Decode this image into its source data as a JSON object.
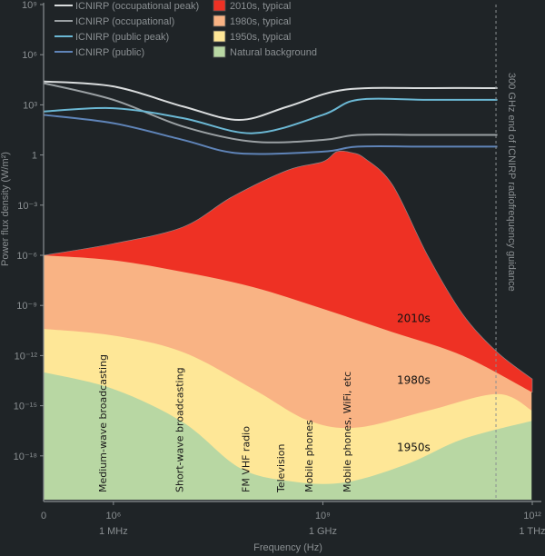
{
  "chart_data": {
    "type": "area",
    "title": "",
    "xlabel": "Frequency (Hz)",
    "ylabel": "Power flux density (W/m²)",
    "x_scale": "log",
    "y_scale": "log",
    "xlim_log10": [
      5,
      12
    ],
    "ylim_log10": [
      -21,
      9
    ],
    "x_ticks": [
      {
        "log10": 5,
        "label": "0",
        "sublabel": ""
      },
      {
        "log10": 6,
        "label": "10⁶",
        "sublabel": "1 MHz"
      },
      {
        "log10": 9,
        "label": "10⁹",
        "sublabel": "1 GHz"
      },
      {
        "log10": 12,
        "label": "10¹²",
        "sublabel": "1 THz"
      }
    ],
    "y_ticks": [
      {
        "log10": 9,
        "label": "10⁹"
      },
      {
        "log10": 6,
        "label": "10⁶"
      },
      {
        "log10": 3,
        "label": "10³"
      },
      {
        "log10": 0,
        "label": "1"
      },
      {
        "log10": -3,
        "label": "10⁻³"
      },
      {
        "log10": -6,
        "label": "10⁻⁶"
      },
      {
        "log10": -9,
        "label": "10⁻⁹"
      },
      {
        "log10": -12,
        "label": "10⁻¹²"
      },
      {
        "log10": -15,
        "label": "10⁻¹⁵"
      },
      {
        "log10": -18,
        "label": "10⁻¹⁸"
      }
    ],
    "y_zero_label": "0",
    "series": [
      {
        "name": "ICNIRP (occupational peak)",
        "kind": "line",
        "color": "#d9dcdd",
        "points_log10": [
          [
            5,
            4.4
          ],
          [
            6,
            4.1
          ],
          [
            7,
            2.9
          ],
          [
            7.8,
            2.1
          ],
          [
            8.5,
            2.9
          ],
          [
            9.3,
            3.9
          ],
          [
            10.5,
            4.0
          ],
          [
            11.5,
            4.0
          ]
        ]
      },
      {
        "name": "ICNIRP (occupational)",
        "kind": "line",
        "color": "#9aa0a3",
        "points_log10": [
          [
            5,
            4.3
          ],
          [
            6,
            3.3
          ],
          [
            7,
            1.7
          ],
          [
            8,
            0.8
          ],
          [
            9,
            0.9
          ],
          [
            9.5,
            1.2
          ],
          [
            10.5,
            1.2
          ],
          [
            11.5,
            1.2
          ]
        ]
      },
      {
        "name": "ICNIRP (public peak)",
        "kind": "line",
        "color": "#6bb8d4",
        "points_log10": [
          [
            5,
            2.6
          ],
          [
            6,
            2.8
          ],
          [
            7,
            2.2
          ],
          [
            8,
            1.3
          ],
          [
            9,
            2.4
          ],
          [
            9.5,
            3.3
          ],
          [
            10.5,
            3.3
          ],
          [
            11.5,
            3.3
          ]
        ]
      },
      {
        "name": "ICNIRP (public)",
        "kind": "line",
        "color": "#5f84b8",
        "points_log10": [
          [
            5,
            2.4
          ],
          [
            6,
            1.9
          ],
          [
            7,
            0.9
          ],
          [
            7.8,
            0.1
          ],
          [
            9,
            0.2
          ],
          [
            9.5,
            0.5
          ],
          [
            10.5,
            0.5
          ],
          [
            11.5,
            0.5
          ]
        ]
      },
      {
        "name": "2010s, typical",
        "kind": "area",
        "color": "#ee3124",
        "points_log10": [
          [
            5,
            -6.0
          ],
          [
            6,
            -5.3
          ],
          [
            7,
            -4.3
          ],
          [
            7.7,
            -2.5
          ],
          [
            8.5,
            -0.9
          ],
          [
            9,
            -0.4
          ],
          [
            9.2,
            0.2
          ],
          [
            9.4,
            0.15
          ],
          [
            9.6,
            -0.2
          ],
          [
            10,
            -1.8
          ],
          [
            10.5,
            -6.0
          ],
          [
            11,
            -9.5
          ],
          [
            11.5,
            -11.8
          ],
          [
            12,
            -13.4
          ]
        ]
      },
      {
        "name": "1980s, typical",
        "kind": "area",
        "color": "#f9b384",
        "points_log10": [
          [
            5,
            -6.0
          ],
          [
            6,
            -6.3
          ],
          [
            7,
            -7.0
          ],
          [
            8,
            -7.9
          ],
          [
            9,
            -9.2
          ],
          [
            10,
            -10.6
          ],
          [
            11,
            -12.0
          ],
          [
            12,
            -14.2
          ]
        ]
      },
      {
        "name": "1950s, typical",
        "kind": "area",
        "color": "#fee797",
        "points_log10": [
          [
            5,
            -10.4
          ],
          [
            6,
            -10.8
          ],
          [
            7,
            -11.8
          ],
          [
            8,
            -14.0
          ],
          [
            8.8,
            -15.9
          ],
          [
            9.5,
            -16.3
          ],
          [
            10.5,
            -15.3
          ],
          [
            11.5,
            -14.3
          ],
          [
            12,
            -15.3
          ]
        ]
      },
      {
        "name": "Natural background",
        "kind": "area",
        "color": "#b8d7a3",
        "points_log10": [
          [
            5,
            -13.0
          ],
          [
            6,
            -14.0
          ],
          [
            7,
            -16.0
          ],
          [
            7.8,
            -18.7
          ],
          [
            8.5,
            -19.5
          ],
          [
            9.3,
            -19.6
          ],
          [
            10.2,
            -18.5
          ],
          [
            11,
            -17.0
          ],
          [
            12,
            -15.9
          ]
        ]
      }
    ],
    "decade_labels": [
      {
        "text": "2010s",
        "x_log10": 10.3,
        "y_log10": -10.0
      },
      {
        "text": "1980s",
        "x_log10": 10.3,
        "y_log10": -13.7
      },
      {
        "text": "1950s",
        "x_log10": 10.3,
        "y_log10": -17.7
      }
    ],
    "band_labels": [
      {
        "text": "Medium-wave broadcasting",
        "x_log10": 5.9
      },
      {
        "text": "Short-wave broadcasting",
        "x_log10": 7.0
      },
      {
        "text": "FM VHF radio",
        "x_log10": 7.95
      },
      {
        "text": "Television",
        "x_log10": 8.45
      },
      {
        "text": "Mobile phones",
        "x_log10": 8.85
      },
      {
        "text": "Mobile phones, WiFi, etc",
        "x_log10": 9.4
      }
    ],
    "reference_line": {
      "x_log10": 11.48,
      "label": "300 GHz end of ICNIRP radiofrequency guidance",
      "style": "dashed"
    },
    "legend": {
      "placement": "top",
      "line_entries": [
        "ICNIRP (occupational peak)",
        "ICNIRP (occupational)",
        "ICNIRP (public peak)",
        "ICNIRP (public)"
      ],
      "box_entries": [
        "2010s, typical",
        "1980s, typical",
        "1950s, typical",
        "Natural background"
      ]
    },
    "grid": false
  }
}
